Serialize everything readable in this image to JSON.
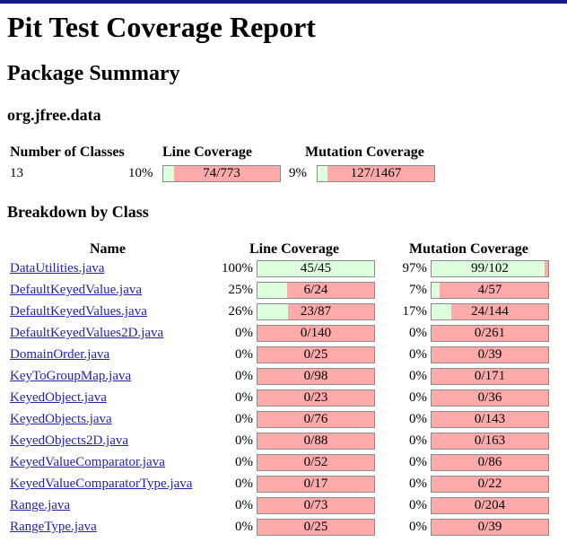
{
  "title": "Pit Test Coverage Report",
  "package_summary_heading": "Package Summary",
  "package_name": "org.jfree.data",
  "summary": {
    "headers": {
      "classes": "Number of Classes",
      "line": "Line Coverage",
      "mutation": "Mutation Coverage"
    },
    "num_classes": "13",
    "line_pct": "10%",
    "line_ratio": "74/773",
    "line_fraction": 0.0957,
    "mut_pct": "9%",
    "mut_ratio": "127/1467",
    "mut_fraction": 0.0866
  },
  "breakdown_heading": "Breakdown by Class",
  "table_headers": {
    "name": "Name",
    "line": "Line Coverage",
    "mutation": "Mutation Coverage"
  },
  "colors": {
    "covered": "#ddffdd",
    "uncovered": "#ffaaaa",
    "link": "#2222bb",
    "top_bar": "#1a1a8c"
  },
  "classes": [
    {
      "name": "DataUtilities.java",
      "line_pct": "100%",
      "line_ratio": "45/45",
      "line_frac": 1.0,
      "mut_pct": "97%",
      "mut_ratio": "99/102",
      "mut_frac": 0.9706
    },
    {
      "name": "DefaultKeyedValue.java",
      "line_pct": "25%",
      "line_ratio": "6/24",
      "line_frac": 0.25,
      "mut_pct": "7%",
      "mut_ratio": "4/57",
      "mut_frac": 0.0702
    },
    {
      "name": "DefaultKeyedValues.java",
      "line_pct": "26%",
      "line_ratio": "23/87",
      "line_frac": 0.2644,
      "mut_pct": "17%",
      "mut_ratio": "24/144",
      "mut_frac": 0.1667
    },
    {
      "name": "DefaultKeyedValues2D.java",
      "line_pct": "0%",
      "line_ratio": "0/140",
      "line_frac": 0,
      "mut_pct": "0%",
      "mut_ratio": "0/261",
      "mut_frac": 0
    },
    {
      "name": "DomainOrder.java",
      "line_pct": "0%",
      "line_ratio": "0/25",
      "line_frac": 0,
      "mut_pct": "0%",
      "mut_ratio": "0/39",
      "mut_frac": 0
    },
    {
      "name": "KeyToGroupMap.java",
      "line_pct": "0%",
      "line_ratio": "0/98",
      "line_frac": 0,
      "mut_pct": "0%",
      "mut_ratio": "0/171",
      "mut_frac": 0
    },
    {
      "name": "KeyedObject.java",
      "line_pct": "0%",
      "line_ratio": "0/23",
      "line_frac": 0,
      "mut_pct": "0%",
      "mut_ratio": "0/36",
      "mut_frac": 0
    },
    {
      "name": "KeyedObjects.java",
      "line_pct": "0%",
      "line_ratio": "0/76",
      "line_frac": 0,
      "mut_pct": "0%",
      "mut_ratio": "0/143",
      "mut_frac": 0
    },
    {
      "name": "KeyedObjects2D.java",
      "line_pct": "0%",
      "line_ratio": "0/88",
      "line_frac": 0,
      "mut_pct": "0%",
      "mut_ratio": "0/163",
      "mut_frac": 0
    },
    {
      "name": "KeyedValueComparator.java",
      "line_pct": "0%",
      "line_ratio": "0/52",
      "line_frac": 0,
      "mut_pct": "0%",
      "mut_ratio": "0/86",
      "mut_frac": 0
    },
    {
      "name": "KeyedValueComparatorType.java",
      "line_pct": "0%",
      "line_ratio": "0/17",
      "line_frac": 0,
      "mut_pct": "0%",
      "mut_ratio": "0/22",
      "mut_frac": 0
    },
    {
      "name": "Range.java",
      "line_pct": "0%",
      "line_ratio": "0/73",
      "line_frac": 0,
      "mut_pct": "0%",
      "mut_ratio": "0/204",
      "mut_frac": 0
    },
    {
      "name": "RangeType.java",
      "line_pct": "0%",
      "line_ratio": "0/25",
      "line_frac": 0,
      "mut_pct": "0%",
      "mut_ratio": "0/39",
      "mut_frac": 0
    }
  ]
}
